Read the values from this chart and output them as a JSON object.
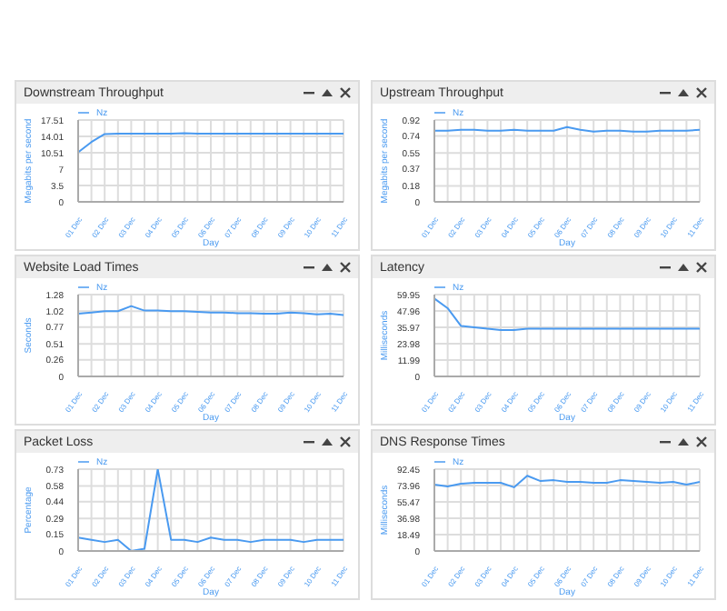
{
  "chart_data": [
    {
      "type": "line",
      "title": "Downstream Throughput",
      "xlabel": "Day",
      "ylabel": "Megabits per second",
      "categories": [
        "01 Dec",
        null,
        "02 Dec",
        null,
        "03 Dec",
        null,
        "04 Dec",
        null,
        "05 Dec",
        null,
        "06 Dec",
        null,
        "07 Dec",
        null,
        "08 Dec",
        null,
        "09 Dec",
        null,
        "10 Dec",
        null,
        "11 Dec"
      ],
      "ylim": [
        0,
        17.51
      ],
      "yticks": [
        0,
        3.5,
        7,
        10.51,
        14.01,
        17.51
      ],
      "grid": true,
      "legend": "top left",
      "marker": "none",
      "series": [
        {
          "name": "Nz",
          "color": "#4a9af0",
          "values": [
            10.6,
            12.8,
            14.5,
            14.6,
            14.6,
            14.6,
            14.6,
            14.6,
            14.7,
            14.6,
            14.6,
            14.6,
            14.6,
            14.6,
            14.6,
            14.6,
            14.6,
            14.6,
            14.6,
            14.6,
            14.6
          ]
        }
      ]
    },
    {
      "type": "line",
      "title": "Upstream Throughput",
      "xlabel": "Day",
      "ylabel": "Megabits per second",
      "categories": [
        "01 Dec",
        null,
        "02 Dec",
        null,
        "03 Dec",
        null,
        "04 Dec",
        null,
        "05 Dec",
        null,
        "06 Dec",
        null,
        "07 Dec",
        null,
        "08 Dec",
        null,
        "09 Dec",
        null,
        "10 Dec",
        null,
        "11 Dec"
      ],
      "ylim": [
        0,
        0.92
      ],
      "yticks": [
        0,
        0.18,
        0.37,
        0.55,
        0.74,
        0.92
      ],
      "grid": true,
      "legend": "top left",
      "marker": "none",
      "series": [
        {
          "name": "Nz",
          "color": "#4a9af0",
          "values": [
            0.8,
            0.8,
            0.81,
            0.81,
            0.8,
            0.8,
            0.81,
            0.8,
            0.8,
            0.8,
            0.84,
            0.81,
            0.79,
            0.8,
            0.8,
            0.79,
            0.79,
            0.8,
            0.8,
            0.8,
            0.81
          ]
        }
      ]
    },
    {
      "type": "line",
      "title": "Website Load Times",
      "xlabel": "Day",
      "ylabel": "Seconds",
      "categories": [
        "01 Dec",
        null,
        "02 Dec",
        null,
        "03 Dec",
        null,
        "04 Dec",
        null,
        "05 Dec",
        null,
        "06 Dec",
        null,
        "07 Dec",
        null,
        "08 Dec",
        null,
        "09 Dec",
        null,
        "10 Dec",
        null,
        "11 Dec"
      ],
      "ylim": [
        0,
        1.28
      ],
      "yticks": [
        0,
        0.26,
        0.51,
        0.77,
        1.02,
        1.28
      ],
      "grid": true,
      "legend": "top left",
      "marker": "none",
      "series": [
        {
          "name": "Nz",
          "color": "#4a9af0",
          "values": [
            0.98,
            1.0,
            1.02,
            1.02,
            1.1,
            1.03,
            1.03,
            1.02,
            1.02,
            1.01,
            1.0,
            1.0,
            0.99,
            0.99,
            0.98,
            0.98,
            1.0,
            0.99,
            0.97,
            0.98,
            0.96
          ]
        }
      ]
    },
    {
      "type": "line",
      "title": "Latency",
      "xlabel": "Day",
      "ylabel": "Milliseconds",
      "categories": [
        "01 Dec",
        null,
        "02 Dec",
        null,
        "03 Dec",
        null,
        "04 Dec",
        null,
        "05 Dec",
        null,
        "06 Dec",
        null,
        "07 Dec",
        null,
        "08 Dec",
        null,
        "09 Dec",
        null,
        "10 Dec",
        null,
        "11 Dec"
      ],
      "ylim": [
        0,
        59.95
      ],
      "yticks": [
        0,
        11.99,
        23.98,
        35.97,
        47.96,
        59.95
      ],
      "grid": true,
      "legend": "top left",
      "marker": "none",
      "series": [
        {
          "name": "Nz",
          "color": "#4a9af0",
          "values": [
            57,
            50,
            37,
            36,
            35,
            34,
            34,
            35,
            35,
            35,
            35,
            35,
            35,
            35,
            35,
            35,
            35,
            35,
            35,
            35,
            35
          ]
        }
      ]
    },
    {
      "type": "line",
      "title": "Packet Loss",
      "xlabel": "Day",
      "ylabel": "Percentage",
      "categories": [
        "01 Dec",
        null,
        "02 Dec",
        null,
        "03 Dec",
        null,
        "04 Dec",
        null,
        "05 Dec",
        null,
        "06 Dec",
        null,
        "07 Dec",
        null,
        "08 Dec",
        null,
        "09 Dec",
        null,
        "10 Dec",
        null,
        "11 Dec"
      ],
      "ylim": [
        0,
        0.73
      ],
      "yticks": [
        0,
        0.15,
        0.29,
        0.44,
        0.58,
        0.73
      ],
      "grid": true,
      "legend": "top left",
      "marker": "none",
      "series": [
        {
          "name": "Nz",
          "color": "#4a9af0",
          "values": [
            0.12,
            0.1,
            0.08,
            0.1,
            0.0,
            0.02,
            0.73,
            0.1,
            0.1,
            0.08,
            0.12,
            0.1,
            0.1,
            0.08,
            0.1,
            0.1,
            0.1,
            0.08,
            0.1,
            0.1,
            0.1
          ]
        }
      ]
    },
    {
      "type": "line",
      "title": "DNS Response Times",
      "xlabel": "Day",
      "ylabel": "Milliseconds",
      "categories": [
        "01 Dec",
        null,
        "02 Dec",
        null,
        "03 Dec",
        null,
        "04 Dec",
        null,
        "05 Dec",
        null,
        "06 Dec",
        null,
        "07 Dec",
        null,
        "08 Dec",
        null,
        "09 Dec",
        null,
        "10 Dec",
        null,
        "11 Dec"
      ],
      "ylim": [
        0,
        92.45
      ],
      "yticks": [
        0,
        18.49,
        36.98,
        55.47,
        73.96,
        92.45
      ],
      "grid": true,
      "legend": "top left",
      "marker": "none",
      "series": [
        {
          "name": "Nz",
          "color": "#4a9af0",
          "values": [
            75,
            73,
            76,
            77,
            77,
            77,
            72,
            85,
            79,
            80,
            78,
            78,
            77,
            77,
            80,
            79,
            78,
            77,
            78,
            75,
            78
          ]
        }
      ]
    }
  ]
}
